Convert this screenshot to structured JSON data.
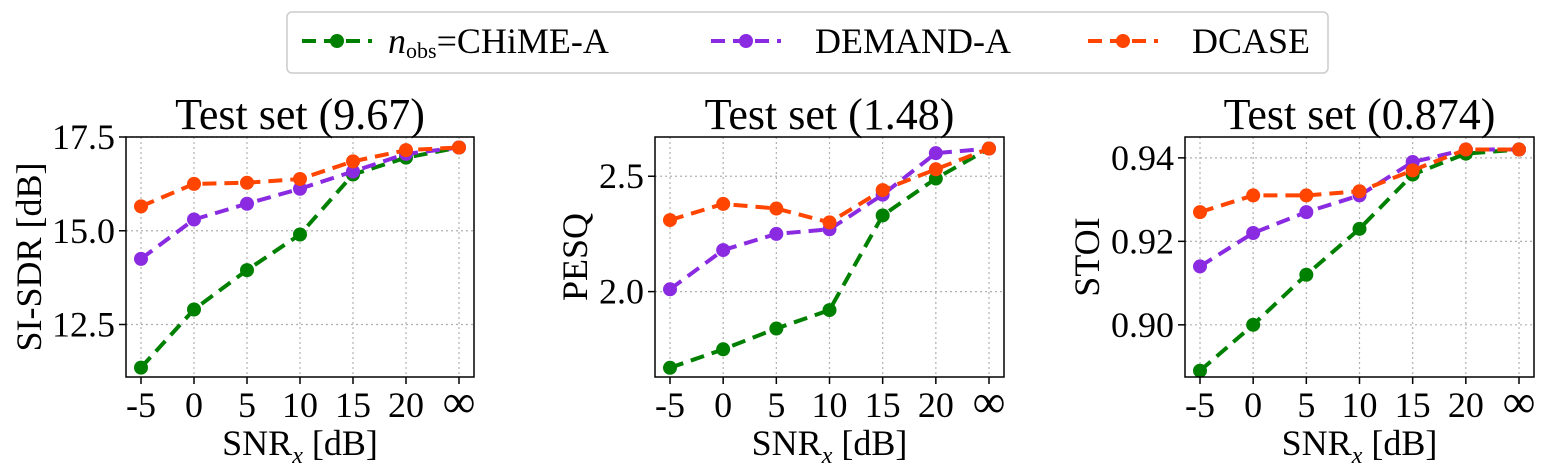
{
  "legend": {
    "entries": [
      {
        "prefix": "n",
        "sub": "obs",
        "text": "=CHiME-A",
        "color": "#008000"
      },
      {
        "prefix": "",
        "sub": "",
        "text": "DEMAND-A",
        "color": "#8a2be2"
      },
      {
        "prefix": "",
        "sub": "",
        "text": "DCASE",
        "color": "#ff4500"
      }
    ]
  },
  "chart_data": [
    {
      "type": "line",
      "title": "Test set (9.67)",
      "xlabel_main": "SNR",
      "xlabel_sub": "x",
      "xlabel_unit": " [dB]",
      "ylabel": "SI-SDR [dB]",
      "categories": [
        "-5",
        "0",
        "5",
        "10",
        "15",
        "20",
        "∞"
      ],
      "ylim": [
        11.1,
        17.5
      ],
      "yticks": [
        12.5,
        15.0,
        17.5
      ],
      "ytick_labels": [
        "12.5",
        "15.0",
        "17.5"
      ],
      "series": [
        {
          "name": "CHiME-A",
          "color": "#008000",
          "values": [
            11.35,
            12.9,
            13.95,
            14.9,
            16.5,
            16.95,
            17.22
          ]
        },
        {
          "name": "DEMAND-A",
          "color": "#8a2be2",
          "values": [
            14.25,
            15.3,
            15.72,
            16.12,
            16.58,
            17.05,
            17.22
          ]
        },
        {
          "name": "DCASE",
          "color": "#ff4500",
          "values": [
            15.65,
            16.25,
            16.28,
            16.38,
            16.85,
            17.15,
            17.22
          ]
        }
      ]
    },
    {
      "type": "line",
      "title": "Test set (1.48)",
      "xlabel_main": "SNR",
      "xlabel_sub": "x",
      "xlabel_unit": " [dB]",
      "ylabel": "PESQ",
      "categories": [
        "-5",
        "0",
        "5",
        "10",
        "15",
        "20",
        "∞"
      ],
      "ylim": [
        1.63,
        2.67
      ],
      "yticks": [
        2.0,
        2.5
      ],
      "ytick_labels": [
        "2.0",
        "2.5"
      ],
      "series": [
        {
          "name": "CHiME-A",
          "color": "#008000",
          "values": [
            1.67,
            1.75,
            1.84,
            1.92,
            2.33,
            2.49,
            2.62
          ]
        },
        {
          "name": "DEMAND-A",
          "color": "#8a2be2",
          "values": [
            2.01,
            2.18,
            2.25,
            2.27,
            2.42,
            2.6,
            2.62
          ]
        },
        {
          "name": "DCASE",
          "color": "#ff4500",
          "values": [
            2.31,
            2.38,
            2.36,
            2.3,
            2.44,
            2.53,
            2.62
          ]
        }
      ]
    },
    {
      "type": "line",
      "title": "Test set (0.874)",
      "xlabel_main": "SNR",
      "xlabel_sub": "x",
      "xlabel_unit": " [dB]",
      "ylabel": "STOI",
      "categories": [
        "-5",
        "0",
        "5",
        "10",
        "15",
        "20",
        "∞"
      ],
      "ylim": [
        0.8875,
        0.945
      ],
      "yticks": [
        0.9,
        0.92,
        0.94
      ],
      "ytick_labels": [
        "0.90",
        "0.92",
        "0.94"
      ],
      "series": [
        {
          "name": "CHiME-A",
          "color": "#008000",
          "values": [
            0.889,
            0.9,
            0.912,
            0.923,
            0.936,
            0.941,
            0.942
          ]
        },
        {
          "name": "DEMAND-A",
          "color": "#8a2be2",
          "values": [
            0.914,
            0.922,
            0.927,
            0.931,
            0.939,
            0.942,
            0.942
          ]
        },
        {
          "name": "DCASE",
          "color": "#ff4500",
          "values": [
            0.927,
            0.931,
            0.931,
            0.932,
            0.937,
            0.942,
            0.942
          ]
        }
      ]
    }
  ]
}
